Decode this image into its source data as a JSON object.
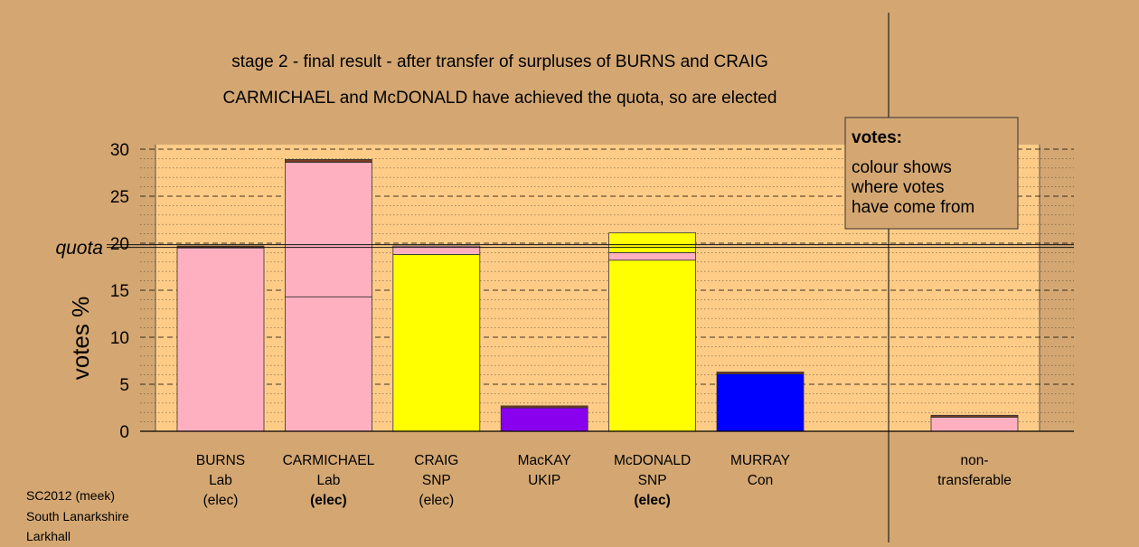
{
  "chart_data": {
    "type": "bar",
    "stacked": true,
    "title": "stage 2 - final result - after transfer of surpluses of BURNS and CRAIG",
    "subtitle": "CARMICHAEL and McDONALD have achieved the quota, so are elected",
    "ylabel": "votes %",
    "ylim": [
      0,
      30
    ],
    "yticks": [
      0,
      5,
      10,
      15,
      20,
      25,
      30
    ],
    "quota": {
      "label": "quota",
      "value": 19.7
    },
    "grid": true,
    "legend": {
      "title": "votes:",
      "lines": [
        "colour shows",
        "where votes",
        "have come from"
      ],
      "position": "top-right"
    },
    "categories": [
      {
        "name": "BURNS",
        "party": "Lab",
        "status": "(elec)",
        "status_bold": false,
        "segments": [
          {
            "value": 19.5,
            "color": "#ffb0c0"
          },
          {
            "value": 0.2,
            "color": "#7a3a20"
          }
        ]
      },
      {
        "name": "CARMICHAEL",
        "party": "Lab",
        "status": "(elec)",
        "status_bold": true,
        "segments": [
          {
            "value": 14.3,
            "color": "#ffb0c0"
          },
          {
            "value": 14.3,
            "color": "#ffb0c0"
          },
          {
            "value": 0.3,
            "color": "#7a3a20"
          }
        ]
      },
      {
        "name": "CRAIG",
        "party": "SNP",
        "status": "(elec)",
        "status_bold": false,
        "segments": [
          {
            "value": 18.8,
            "color": "#ffff00"
          },
          {
            "value": 0.9,
            "color": "#ffb0c0"
          }
        ]
      },
      {
        "name": "MacKAY",
        "party": "UKIP",
        "status": "",
        "status_bold": false,
        "segments": [
          {
            "value": 2.5,
            "color": "#8800ee"
          },
          {
            "value": 0.2,
            "color": "#7a3a20"
          }
        ]
      },
      {
        "name": "McDONALD",
        "party": "SNP",
        "status": "(elec)",
        "status_bold": true,
        "segments": [
          {
            "value": 18.2,
            "color": "#ffff00"
          },
          {
            "value": 0.8,
            "color": "#ffb0c0"
          },
          {
            "value": 2.1,
            "color": "#ffff00"
          }
        ]
      },
      {
        "name": "MURRAY",
        "party": "Con",
        "status": "",
        "status_bold": false,
        "segments": [
          {
            "value": 6.1,
            "color": "#0000ff"
          },
          {
            "value": 0.2,
            "color": "#7a3a20"
          }
        ]
      }
    ],
    "nontransferable": {
      "label_lines": [
        "non-",
        "transferable"
      ],
      "segments": [
        {
          "value": 1.5,
          "color": "#ffb0c0"
        },
        {
          "value": 0.2,
          "color": "#7a3a20"
        }
      ]
    },
    "colors": {
      "background": "#d4a772",
      "plot_area": "#ffcc88",
      "legend_bg": "#d4a772"
    }
  },
  "footer": {
    "line1": "SC2012 (meek)",
    "line2": "South Lanarkshire",
    "line3": "Larkhall"
  }
}
